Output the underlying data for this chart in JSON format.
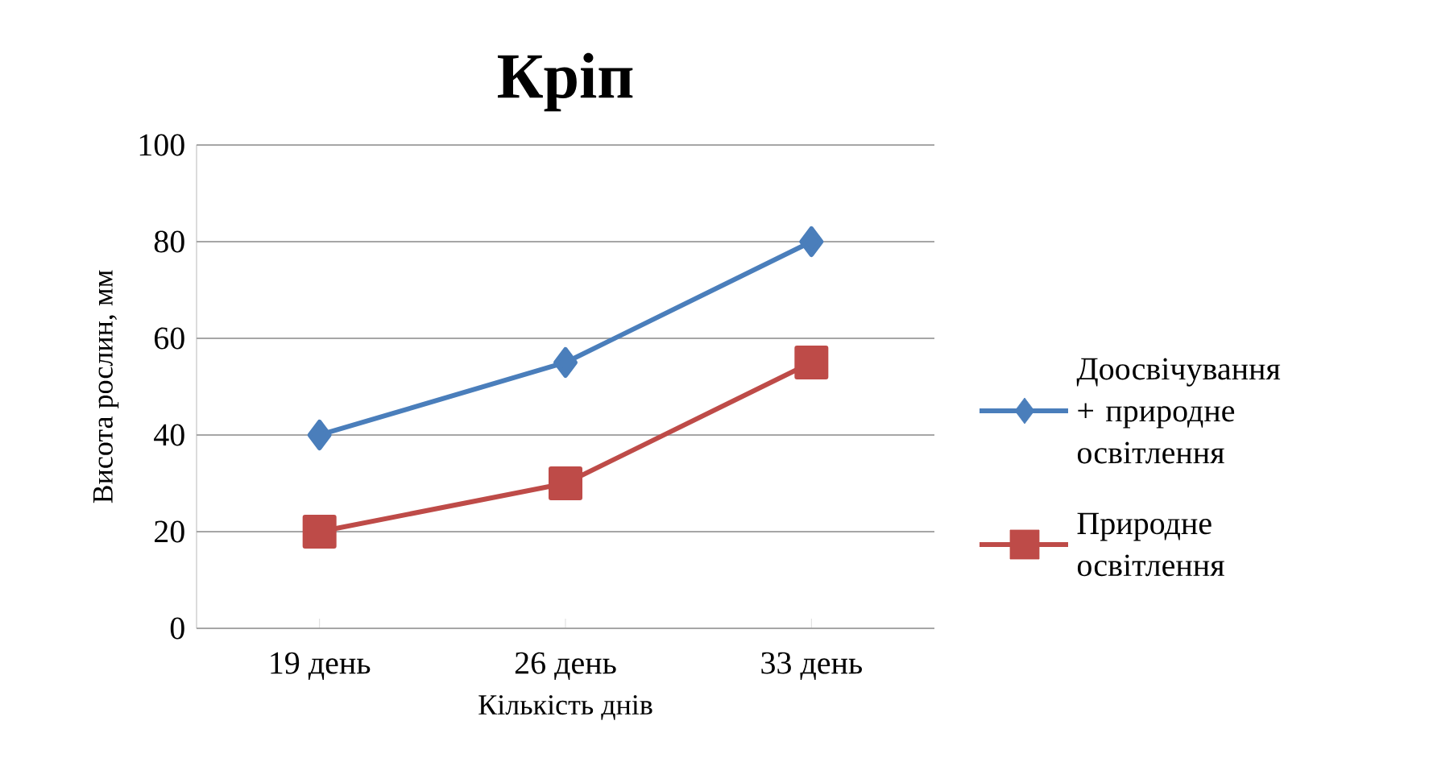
{
  "chart_data": {
    "type": "line",
    "title": "Кріп",
    "xlabel": "Кількість днів",
    "ylabel": "Висота рослин, мм",
    "categories": [
      "19 день",
      "26 день",
      "33 день"
    ],
    "series": [
      {
        "name": "Доосвічування + природне освітлення",
        "color": "#4a7ebb",
        "marker": "diamond",
        "values": [
          40,
          55,
          80
        ]
      },
      {
        "name": "Природне освітлення",
        "color": "#be4b48",
        "marker": "square",
        "values": [
          20,
          30,
          55
        ]
      }
    ],
    "ylim": [
      0,
      100
    ],
    "yticks": [
      0,
      20,
      40,
      60,
      80,
      100
    ],
    "grid": "y",
    "legend": "right",
    "line_style": "solid"
  }
}
